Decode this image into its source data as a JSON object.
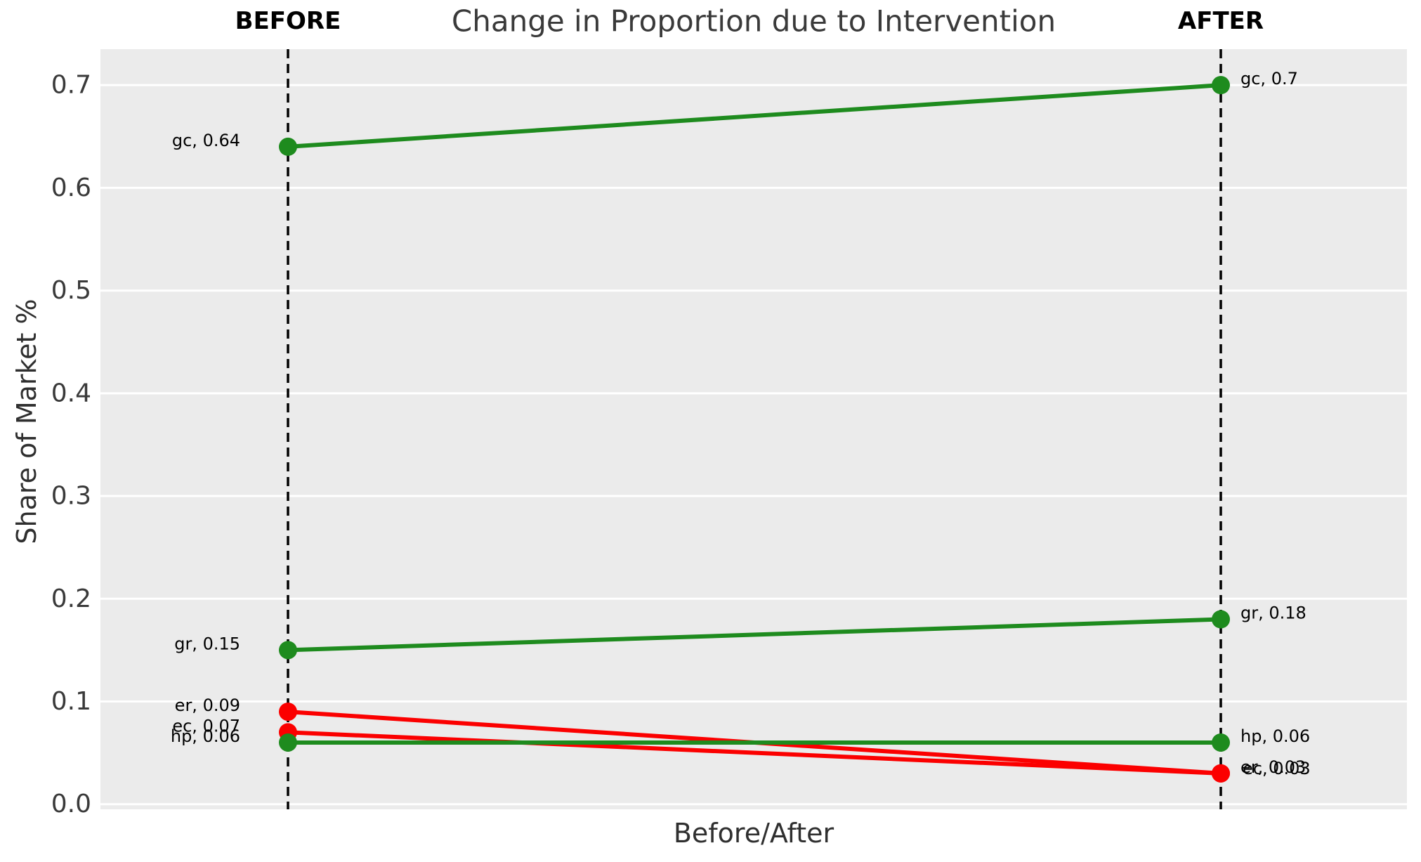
{
  "chart_data": {
    "type": "slope",
    "title": "Change in Proportion due to Intervention",
    "xlabel": "Before/After",
    "ylabel": "Share of Market %",
    "categories": [
      "BEFORE",
      "AFTER"
    ],
    "yticks": {
      "values": [
        0.0,
        0.1,
        0.2,
        0.3,
        0.4,
        0.5,
        0.6,
        0.7
      ],
      "labels": [
        "0.0",
        "0.1",
        "0.2",
        "0.3",
        "0.4",
        "0.5",
        "0.6",
        "0.7"
      ]
    },
    "ylim": [
      -0.005,
      0.735
    ],
    "grid": {
      "horizontal": true,
      "color": "#ffffff"
    },
    "legend": false,
    "series": [
      {
        "name": "gc",
        "values": [
          0.64,
          0.7
        ],
        "direction": "increase",
        "color": "#1e8b1e",
        "point_labels": [
          "gc, 0.64",
          "gc, 0.7"
        ]
      },
      {
        "name": "gr",
        "values": [
          0.15,
          0.18
        ],
        "direction": "increase",
        "color": "#1e8b1e",
        "point_labels": [
          "gr, 0.15",
          "gr, 0.18"
        ]
      },
      {
        "name": "er",
        "values": [
          0.09,
          0.03
        ],
        "direction": "decrease",
        "color": "#fb0000",
        "point_labels": [
          "er, 0.09",
          "er, 0.03"
        ]
      },
      {
        "name": "ec",
        "values": [
          0.07,
          0.03
        ],
        "direction": "decrease",
        "color": "#fb0000",
        "point_labels": [
          "ec, 0.07",
          "ec, 0.03"
        ]
      },
      {
        "name": "hp",
        "values": [
          0.06,
          0.06
        ],
        "direction": "same",
        "color": "#1e8b1e",
        "point_labels": [
          "hp, 0.06",
          "hp, 0.06"
        ]
      }
    ]
  },
  "colors": {
    "figure_bg": "#ffffff",
    "plot_bg": "#ebebeb",
    "grid": "#ffffff",
    "guide_line": "#000000",
    "increase": "#1e8b1e",
    "decrease": "#fb0000",
    "axis_text": "#3a3a3a"
  }
}
